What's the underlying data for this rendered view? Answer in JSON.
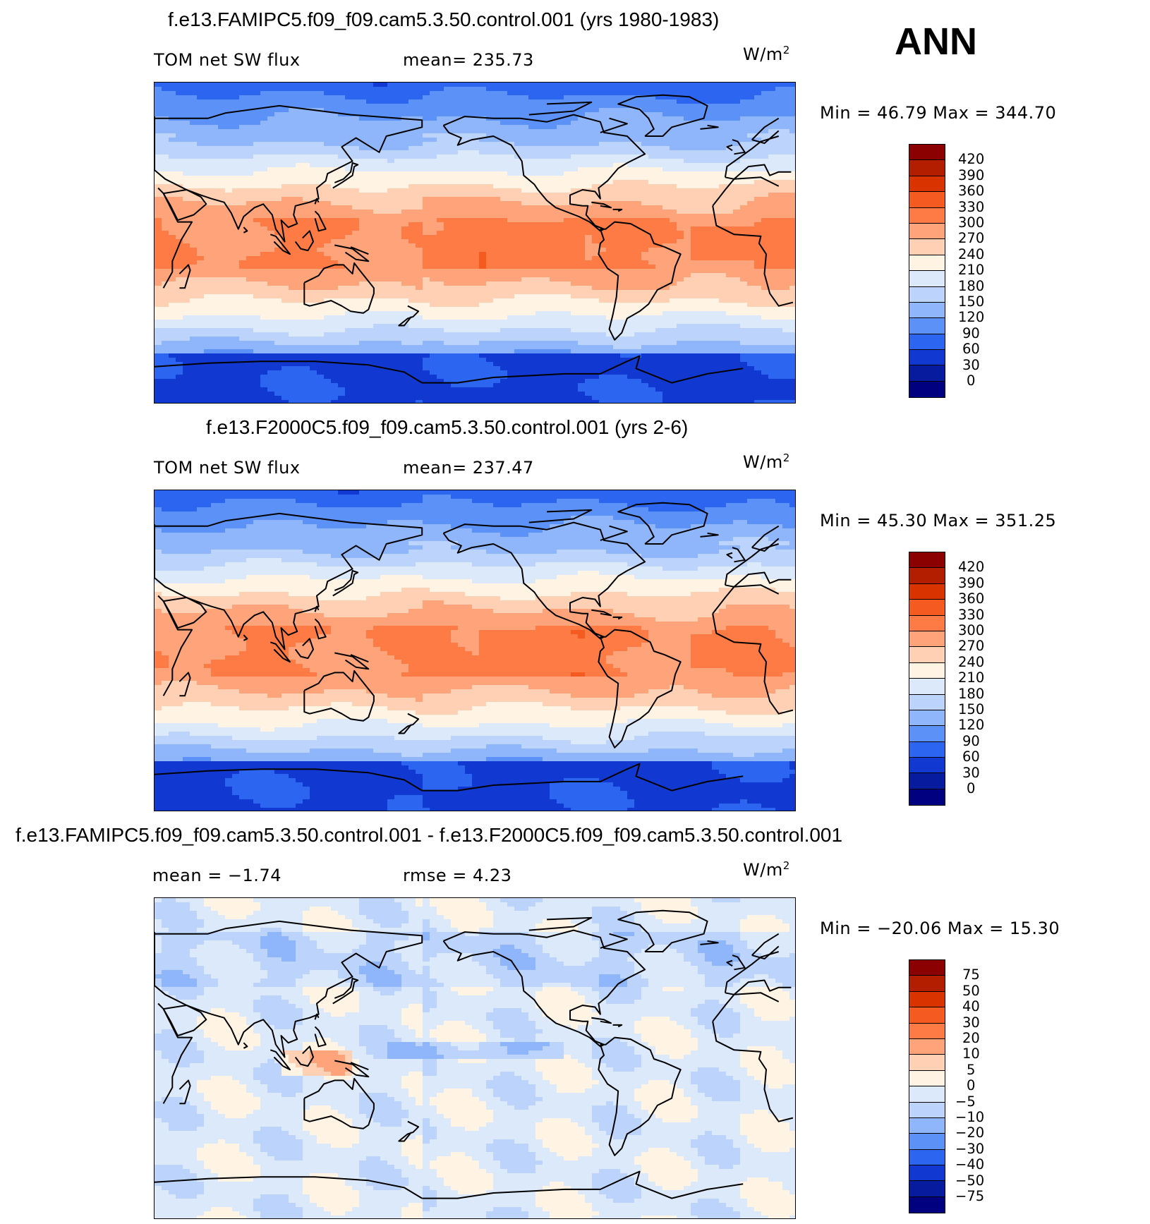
{
  "season": "ANN",
  "panels": [
    {
      "title": "f.e13.FAMIPC5.f09_f09.cam5.3.50.control.001 (yrs 1980-1983)",
      "left_label": "TOM net SW flux",
      "center_label": "mean=  235.73",
      "units": "W/m",
      "units_sup": "2",
      "minmax": "Min =   46.79  Max  =  344.70",
      "colorbar_labels": [
        "420",
        "390",
        "360",
        "330",
        "300",
        "270",
        "240",
        "210",
        "180",
        "150",
        "120",
        "90",
        "60",
        "30",
        "0"
      ],
      "colorbar_colors": [
        "#8b0000",
        "#b41e00",
        "#d93300",
        "#f55a20",
        "#ff7b45",
        "#ffa37a",
        "#ffd0b4",
        "#fff3e4",
        "#dce9fb",
        "#bcd3fb",
        "#8fb5fa",
        "#5c91f7",
        "#2c65ef",
        "#1238d2",
        "#061b9e",
        "#000080"
      ],
      "field": "absolute"
    },
    {
      "title": "f.e13.F2000C5.f09_f09.cam5.3.50.control.001 (yrs 2-6)",
      "left_label": "TOM net SW flux",
      "center_label": "mean=  237.47",
      "units": "W/m",
      "units_sup": "2",
      "minmax": "Min =   45.30  Max  =  351.25",
      "colorbar_labels": [
        "420",
        "390",
        "360",
        "330",
        "300",
        "270",
        "240",
        "210",
        "180",
        "150",
        "120",
        "90",
        "60",
        "30",
        "0"
      ],
      "colorbar_colors": [
        "#8b0000",
        "#b41e00",
        "#d93300",
        "#f55a20",
        "#ff7b45",
        "#ffa37a",
        "#ffd0b4",
        "#fff3e4",
        "#dce9fb",
        "#bcd3fb",
        "#8fb5fa",
        "#5c91f7",
        "#2c65ef",
        "#1238d2",
        "#061b9e",
        "#000080"
      ],
      "field": "absolute"
    },
    {
      "title": "f.e13.FAMIPC5.f09_f09.cam5.3.50.control.001 - f.e13.F2000C5.f09_f09.cam5.3.50.control.001",
      "left_label": "mean =    −1.74",
      "center_label": "rmse =     4.23",
      "units": "W/m",
      "units_sup": "2",
      "minmax": "Min  = −20.06  Max =    15.30",
      "colorbar_labels": [
        "75",
        "50",
        "40",
        "30",
        "20",
        "10",
        "5",
        "0",
        "−5",
        "−10",
        "−20",
        "−30",
        "−40",
        "−50",
        "−75"
      ],
      "colorbar_colors": [
        "#8b0000",
        "#b41e00",
        "#d93300",
        "#f55a20",
        "#ff7b45",
        "#ffa37a",
        "#ffd0b4",
        "#fff3e4",
        "#dce9fb",
        "#bcd3fb",
        "#8fb5fa",
        "#5c91f7",
        "#2c65ef",
        "#1238d2",
        "#061b9e",
        "#000080"
      ],
      "field": "difference"
    }
  ]
}
